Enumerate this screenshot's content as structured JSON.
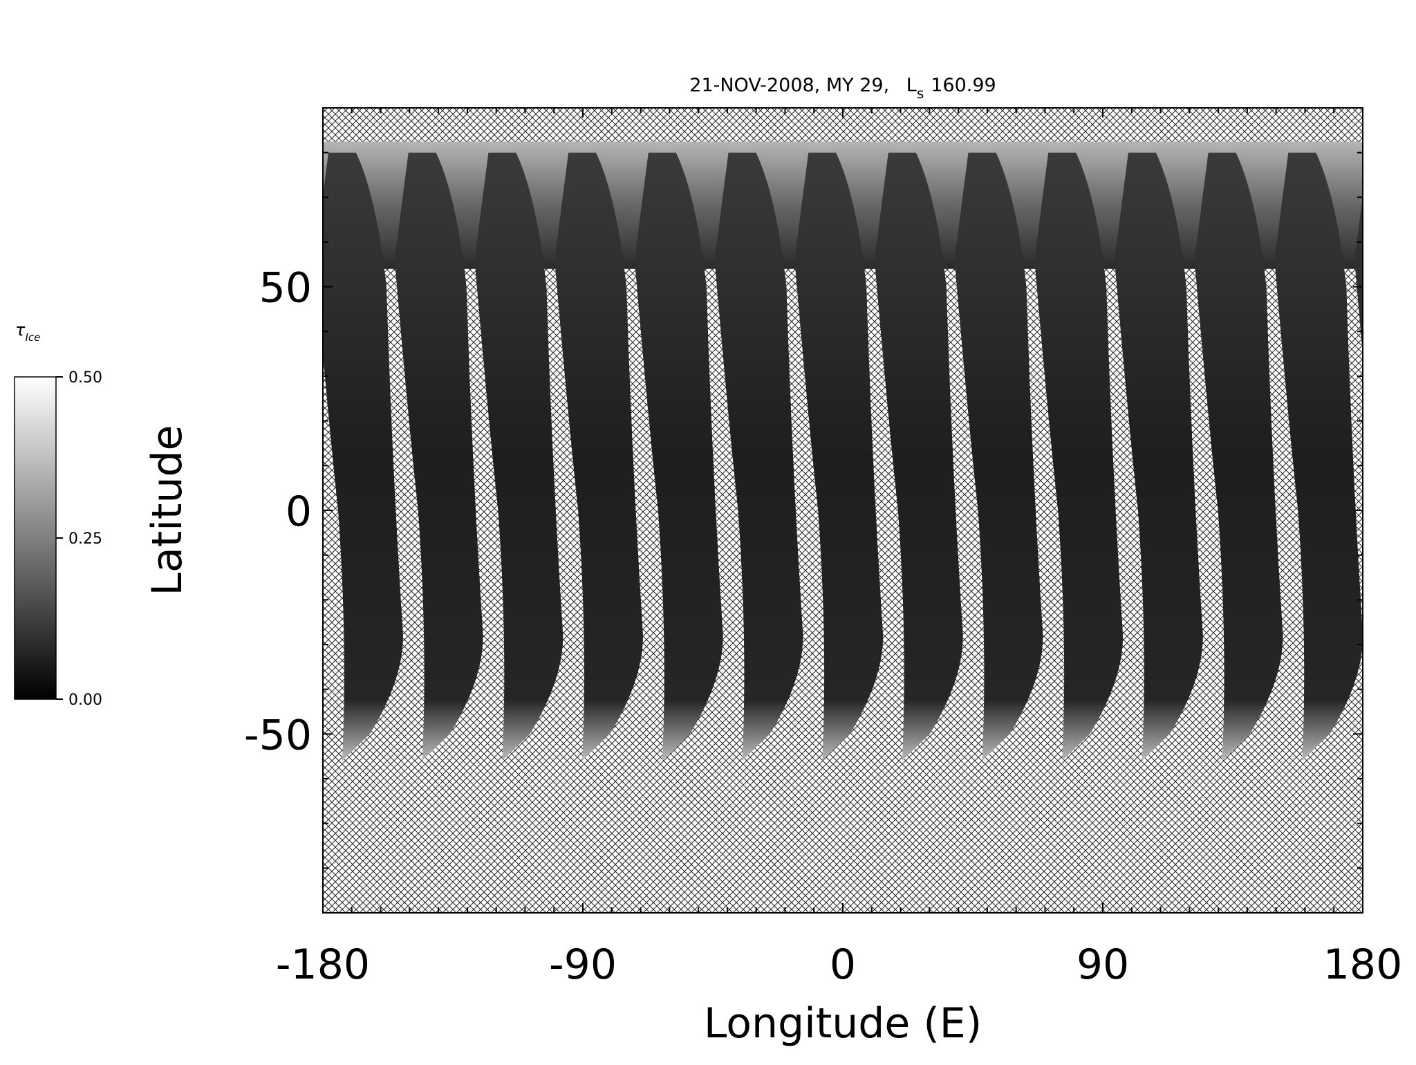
{
  "chart_data": {
    "type": "map",
    "title_main": "21-NOV-2008, MY 29,",
    "title_ls_symbol": "L",
    "title_ls_sub": "s",
    "title_ls_value": "160.99",
    "x_label": "Longitude (E)",
    "y_label": "Latitude",
    "xlim": [
      -180,
      180
    ],
    "ylim": [
      -90,
      90
    ],
    "xticks": [
      -180,
      -90,
      0,
      90,
      180
    ],
    "yticks": [
      -50,
      0,
      50
    ],
    "xminorticks": [
      -170,
      -160,
      -150,
      -140,
      -130,
      -120,
      -110,
      -100,
      -80,
      -70,
      -60,
      -50,
      -40,
      -30,
      -20,
      -10,
      10,
      20,
      30,
      40,
      50,
      60,
      70,
      80,
      100,
      110,
      120,
      130,
      140,
      150,
      160,
      170
    ],
    "yminorticks": [
      -80,
      -70,
      -60,
      -40,
      -30,
      -20,
      -10,
      10,
      20,
      30,
      40,
      60,
      70,
      80
    ],
    "colorbar": {
      "label_symbol": "τ",
      "label_sub": "Ice",
      "lim": [
        0,
        0.5
      ],
      "ticks": [
        {
          "value": 0,
          "label": "0.00"
        },
        {
          "value": 0.25,
          "label": "0.25"
        },
        {
          "value": 0.5,
          "label": "0.50"
        }
      ]
    }
  }
}
